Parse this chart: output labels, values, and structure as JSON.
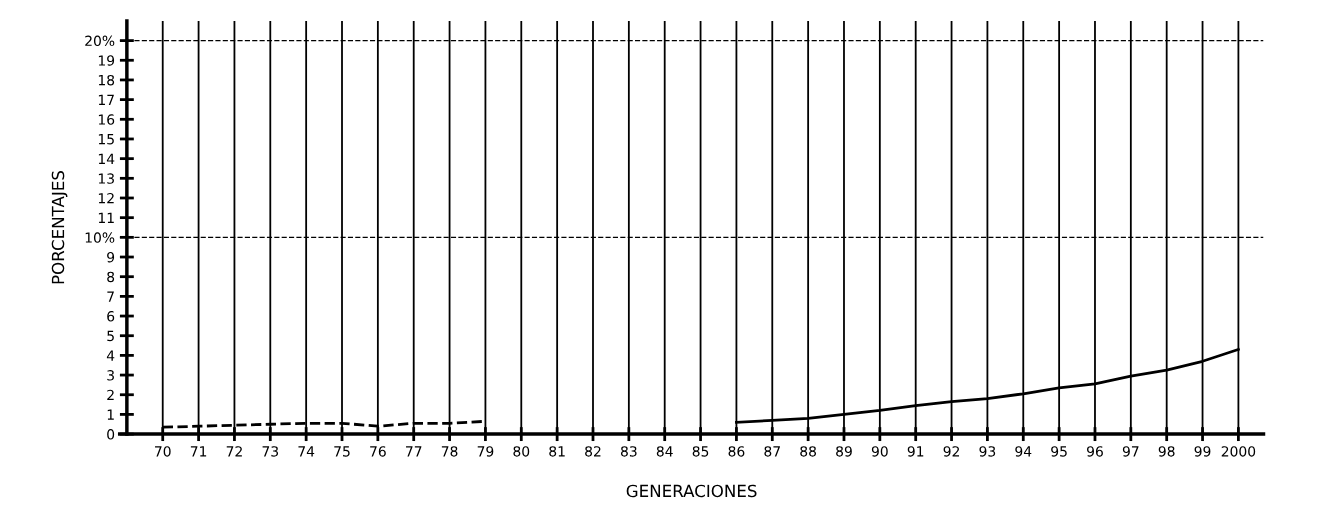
{
  "chart_data": {
    "type": "line",
    "xlabel": "GENERACIONES",
    "ylabel": "PORCENTAJES",
    "categories": [
      "70",
      "71",
      "72",
      "73",
      "74",
      "75",
      "76",
      "77",
      "78",
      "79",
      "80",
      "81",
      "82",
      "83",
      "84",
      "85",
      "86",
      "87",
      "88",
      "89",
      "90",
      "91",
      "92",
      "93",
      "94",
      "95",
      "96",
      "97",
      "98",
      "99",
      "2000"
    ],
    "series": [
      {
        "color": "#000000",
        "line_style": "dashed",
        "values": [
          0.35,
          0.4,
          0.45,
          0.5,
          0.55,
          0.55,
          0.4,
          0.55,
          0.55,
          0.65,
          null,
          null,
          null,
          null,
          null,
          null,
          null,
          null,
          null,
          null,
          null,
          null,
          null,
          null,
          null,
          null,
          null,
          null,
          null,
          null,
          null
        ]
      },
      {
        "color": "#000000",
        "line_style": "solid",
        "values": [
          null,
          null,
          null,
          null,
          null,
          null,
          null,
          null,
          null,
          null,
          null,
          null,
          null,
          null,
          null,
          null,
          0.6,
          0.7,
          0.8,
          1.0,
          1.2,
          1.45,
          1.65,
          1.8,
          2.05,
          2.35,
          2.55,
          2.95,
          3.25,
          3.7,
          4.3
        ]
      }
    ],
    "ylim": [
      0,
      21
    ],
    "yticks": [
      0,
      1,
      2,
      3,
      4,
      5,
      6,
      7,
      8,
      9,
      {
        "value": 10,
        "label": "10%"
      },
      11,
      12,
      13,
      14,
      15,
      16,
      17,
      18,
      19,
      {
        "value": 20,
        "label": "20%"
      }
    ],
    "ref_lines": [
      {
        "axis": "y",
        "value": 10,
        "line_style": "dashed",
        "color": "#000000"
      },
      {
        "axis": "y",
        "value": 20,
        "line_style": "dashed",
        "color": "#000000"
      }
    ],
    "grid": "x",
    "marker": "none"
  }
}
